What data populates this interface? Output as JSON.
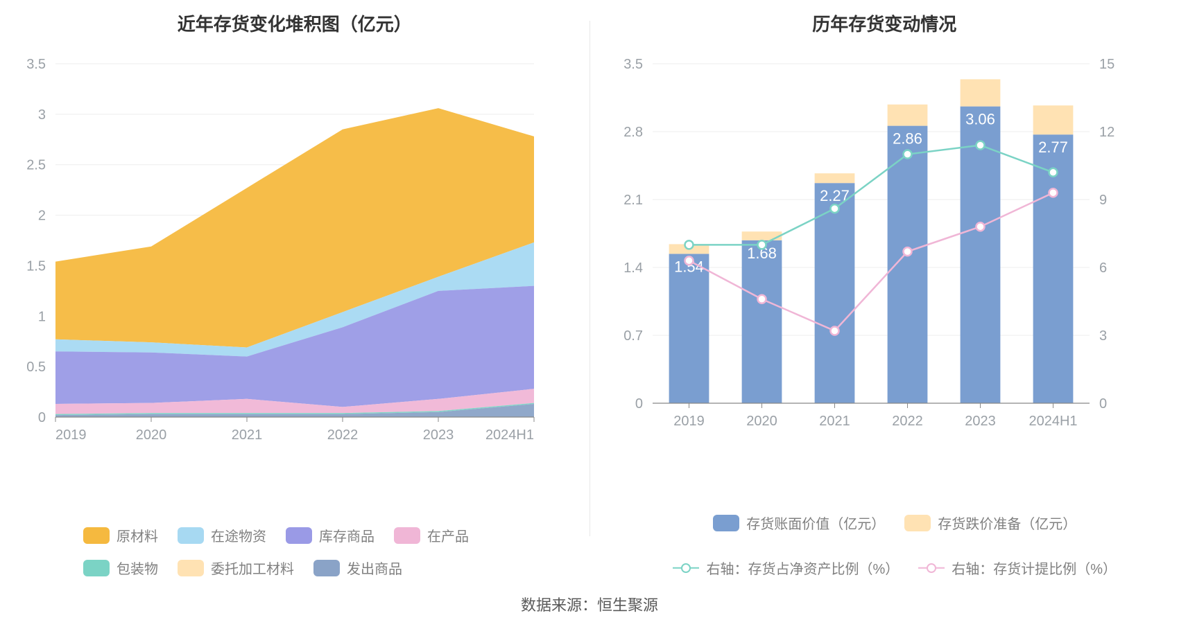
{
  "footer_text": "数据来源：恒生聚源",
  "left_chart": {
    "type": "stacked-area",
    "title": "近年存货变化堆积图（亿元）",
    "categories": [
      "2019",
      "2020",
      "2021",
      "2022",
      "2023",
      "2024H1"
    ],
    "y_axis": {
      "min": 0,
      "max": 3.5,
      "step": 0.5,
      "label_color": "#9aa0a6"
    },
    "series": [
      {
        "name": "发出商品",
        "color": "#8aa3c7",
        "values": [
          0.02,
          0.03,
          0.03,
          0.03,
          0.05,
          0.13
        ]
      },
      {
        "name": "委托加工材料",
        "color": "#ffe2b3",
        "values": [
          0.0,
          0.0,
          0.0,
          0.0,
          0.0,
          0.0
        ]
      },
      {
        "name": "包装物",
        "color": "#7bd3c5",
        "values": [
          0.01,
          0.01,
          0.01,
          0.01,
          0.01,
          0.01
        ]
      },
      {
        "name": "在产品",
        "color": "#f0b6d6",
        "values": [
          0.1,
          0.1,
          0.14,
          0.06,
          0.12,
          0.14
        ]
      },
      {
        "name": "库存商品",
        "color": "#9a9ae6",
        "values": [
          0.52,
          0.5,
          0.42,
          0.79,
          1.07,
          1.02
        ]
      },
      {
        "name": "在途物资",
        "color": "#a7d9f2",
        "values": [
          0.12,
          0.1,
          0.09,
          0.15,
          0.14,
          0.43
        ]
      },
      {
        "name": "原材料",
        "color": "#f5b93f",
        "values": [
          0.77,
          0.95,
          1.58,
          1.81,
          1.67,
          1.05
        ]
      }
    ],
    "legend_order": [
      "原材料",
      "在途物资",
      "库存商品",
      "在产品",
      "包装物",
      "委托加工材料",
      "发出商品"
    ],
    "grid_color": "#eeeeee",
    "axis_line_color": "#888888",
    "background_color": "#ffffff"
  },
  "right_chart": {
    "type": "bar-line-dual-axis",
    "title": "历年存货变动情况",
    "categories": [
      "2019",
      "2020",
      "2021",
      "2022",
      "2023",
      "2024H1"
    ],
    "left_y_axis": {
      "min": 0,
      "max": 3.5,
      "step": 0.7,
      "label_color": "#9aa0a6"
    },
    "right_y_axis": {
      "min": 0,
      "max": 15,
      "step": 3,
      "label_color": "#9aa0a6"
    },
    "bar_series": [
      {
        "name": "存货账面价值（亿元）",
        "color": "#7a9ed0",
        "values": [
          1.54,
          1.68,
          2.27,
          2.86,
          3.06,
          2.77
        ]
      },
      {
        "name": "存货跌价准备（亿元）",
        "color": "#ffe2b3",
        "values": [
          0.1,
          0.09,
          0.1,
          0.22,
          0.28,
          0.3
        ]
      }
    ],
    "line_series": [
      {
        "name": "右轴：存货占净资产比例（%）",
        "color": "#7bd3c5",
        "values": [
          7.0,
          7.0,
          8.6,
          11.0,
          11.4,
          10.2
        ]
      },
      {
        "name": "右轴：存货计提比例（%）",
        "color": "#f0b6d6",
        "values": [
          6.3,
          4.6,
          3.2,
          6.7,
          7.8,
          9.3
        ]
      }
    ],
    "bar_labels": [
      "1.54",
      "1.68",
      "2.27",
      "2.86",
      "3.06",
      "2.77"
    ],
    "bar_width_ratio": 0.55,
    "grid_color": "#eeeeee",
    "axis_line_color": "#888888",
    "background_color": "#ffffff"
  }
}
